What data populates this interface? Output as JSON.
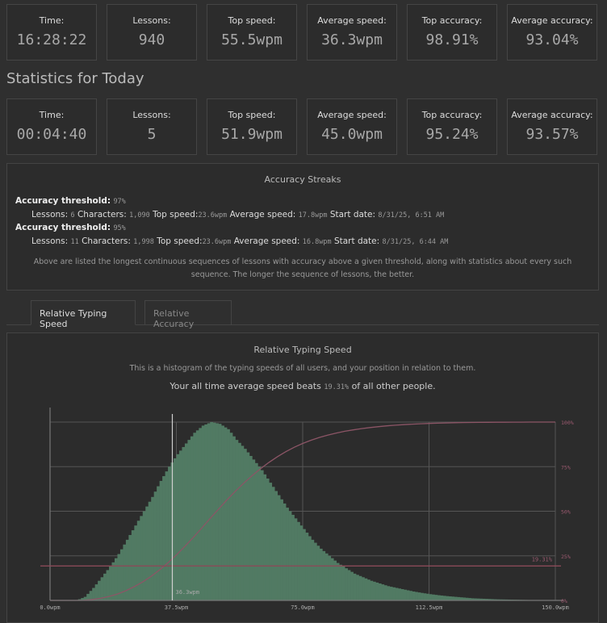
{
  "all_time": [
    {
      "label": "Time:",
      "value": "16:28:22"
    },
    {
      "label": "Lessons:",
      "value": "940"
    },
    {
      "label": "Top speed:",
      "value": "55.5wpm"
    },
    {
      "label": "Average speed:",
      "value": "36.3wpm"
    },
    {
      "label": "Top accuracy:",
      "value": "98.91%"
    },
    {
      "label": "Average accuracy:",
      "value": "93.04%"
    }
  ],
  "today_heading": "Statistics for Today",
  "today": [
    {
      "label": "Time:",
      "value": "00:04:40"
    },
    {
      "label": "Lessons:",
      "value": "5"
    },
    {
      "label": "Top speed:",
      "value": "51.9wpm"
    },
    {
      "label": "Average speed:",
      "value": "45.0wpm"
    },
    {
      "label": "Top accuracy:",
      "value": "95.24%"
    },
    {
      "label": "Average accuracy:",
      "value": "93.57%"
    }
  ],
  "streaks": {
    "title": "Accuracy Streaks",
    "labels": {
      "threshold": "Accuracy threshold:",
      "lessons": "Lessons:",
      "characters": "Characters:",
      "top_speed": "Top speed:",
      "avg_speed": "Average speed:",
      "start_date": "Start date:"
    },
    "items": [
      {
        "threshold": "97%",
        "lessons": "6",
        "characters": "1,090",
        "top_speed": "23.6wpm",
        "avg_speed": "17.8wpm",
        "start_date": "8/31/25, 6:51 AM"
      },
      {
        "threshold": "95%",
        "lessons": "11",
        "characters": "1,998",
        "top_speed": "23.6wpm",
        "avg_speed": "16.8wpm",
        "start_date": "8/31/25, 6:44 AM"
      }
    ],
    "note": "Above are listed the longest continuous sequences of lessons with accuracy above a given threshold, along with statistics about every such sequence. The longer the sequence of lessons, the better."
  },
  "tabs": [
    {
      "label": "Relative Typing Speed",
      "active": true
    },
    {
      "label": "Relative Accuracy",
      "active": false
    }
  ],
  "chart_panel": {
    "title": "Relative Typing Speed",
    "description": "This is a histogram of the typing speeds of all users, and your position in relation to them.",
    "beats_prefix": "Your all time average speed beats",
    "beats_value": "19.31%",
    "beats_suffix": "of all other people."
  },
  "chart_data": {
    "type": "bar",
    "xlim": [
      0,
      150
    ],
    "x_ticks": [
      "0.0wpm",
      "37.5wpm",
      "75.0wpm",
      "112.5wpm",
      "150.0wpm"
    ],
    "y2_ticks": [
      "0%",
      "25%",
      "50%",
      "75%",
      "100%"
    ],
    "bin_width": 2.5,
    "x": [
      0,
      2.5,
      5,
      7.5,
      10,
      12.5,
      15,
      17.5,
      20,
      22.5,
      25,
      27.5,
      30,
      32.5,
      35,
      37.5,
      40,
      42.5,
      45,
      47.5,
      50,
      52.5,
      55,
      57.5,
      60,
      62.5,
      65,
      67.5,
      70,
      72.5,
      75,
      77.5,
      80,
      82.5,
      85,
      87.5,
      90,
      92.5,
      95,
      97.5,
      100,
      102.5,
      105,
      107.5,
      110,
      112.5,
      115,
      117.5,
      120,
      122.5,
      125,
      127.5,
      130,
      132.5,
      135,
      137.5,
      140,
      142.5,
      145,
      147.5,
      150
    ],
    "values": [
      0,
      0,
      0,
      0,
      0.02,
      0.07,
      0.13,
      0.19,
      0.26,
      0.34,
      0.42,
      0.5,
      0.58,
      0.67,
      0.75,
      0.82,
      0.88,
      0.94,
      0.98,
      1.0,
      0.99,
      0.96,
      0.9,
      0.85,
      0.79,
      0.73,
      0.66,
      0.59,
      0.52,
      0.46,
      0.4,
      0.34,
      0.29,
      0.25,
      0.21,
      0.18,
      0.15,
      0.13,
      0.11,
      0.095,
      0.08,
      0.07,
      0.06,
      0.05,
      0.042,
      0.035,
      0.029,
      0.024,
      0.02,
      0.016,
      0.012,
      0.01,
      0.008,
      0.006,
      0.005,
      0.004,
      0.003,
      0.002,
      0.002,
      0.001,
      0.001
    ],
    "user_speed": 36.3,
    "user_speed_label": "36.3wpm",
    "user_percentile": 19.31,
    "user_percentile_label": "19.31%",
    "colors": {
      "histogram": "#517a63",
      "cumulative": "#8c5566",
      "percentile_line": "#8a4a58",
      "user_line": "#cfcfcf",
      "grid": "#555555"
    }
  }
}
